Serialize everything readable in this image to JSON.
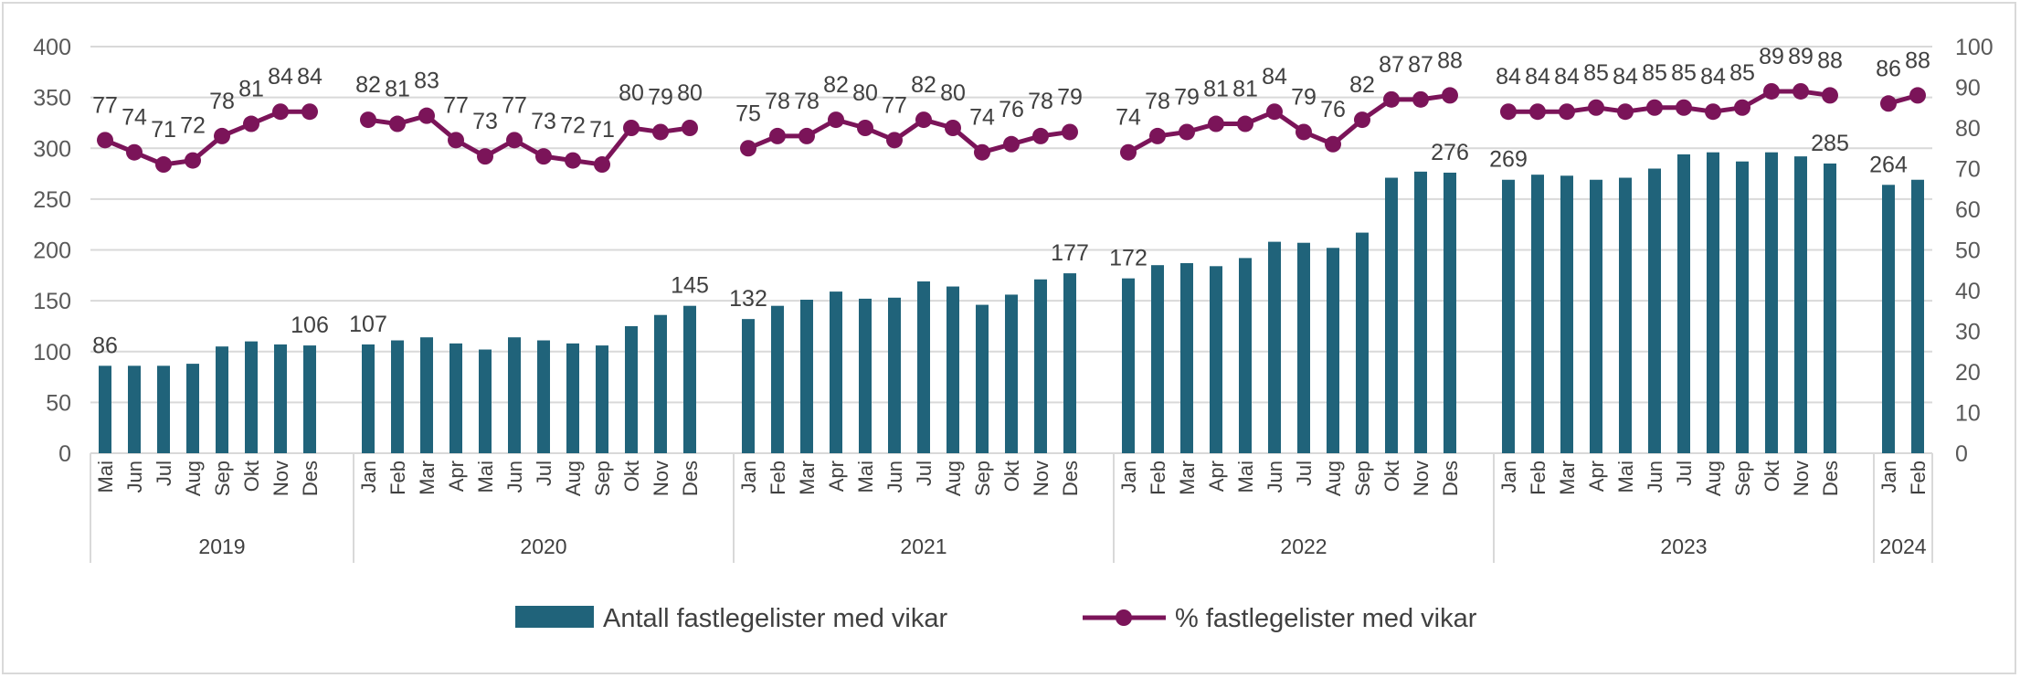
{
  "chart_data": {
    "type": "bar+line",
    "left_axis": {
      "ylim": [
        0,
        400
      ],
      "ticks": [
        "0",
        "50",
        "100",
        "150",
        "200",
        "250",
        "300",
        "350",
        "400"
      ]
    },
    "right_axis": {
      "ylim": [
        0,
        100
      ],
      "ticks": [
        "0",
        "10",
        "20",
        "30",
        "40",
        "50",
        "60",
        "70",
        "80",
        "90",
        "100"
      ]
    },
    "grid": true,
    "legend_position": "bottom",
    "colors": {
      "bars": "#20637A",
      "line": "#7B1459",
      "grid": "#d9d9d9"
    },
    "series": [
      {
        "name": "Antall fastlegelister med vikar",
        "type": "bar",
        "axis": "left"
      },
      {
        "name": "% fastlegelister med vikar",
        "type": "line",
        "axis": "right",
        "markers": "circle"
      }
    ],
    "groups": [
      {
        "year": "2019",
        "months": [
          "Mai",
          "Jun",
          "Jul",
          "Aug",
          "Sep",
          "Okt",
          "Nov",
          "Des"
        ],
        "bars": [
          86,
          86,
          86,
          88,
          105,
          110,
          107,
          106
        ],
        "pct": [
          77,
          74,
          71,
          72,
          78,
          81,
          84,
          84
        ],
        "bar_labeled": [
          true,
          false,
          false,
          false,
          false,
          false,
          false,
          true
        ]
      },
      {
        "year": "2020",
        "months": [
          "Jan",
          "Feb",
          "Mar",
          "Apr",
          "Mai",
          "Jun",
          "Jul",
          "Aug",
          "Sep",
          "Okt",
          "Nov",
          "Des"
        ],
        "bars": [
          107,
          111,
          114,
          108,
          102,
          114,
          111,
          108,
          106,
          125,
          136,
          145
        ],
        "pct": [
          82,
          81,
          83,
          77,
          73,
          77,
          73,
          72,
          71,
          80,
          79,
          80
        ],
        "bar_labeled": [
          true,
          false,
          false,
          false,
          false,
          false,
          false,
          false,
          false,
          false,
          false,
          true
        ]
      },
      {
        "year": "2021",
        "months": [
          "Jan",
          "Feb",
          "Mar",
          "Apr",
          "Mai",
          "Jun",
          "Jul",
          "Aug",
          "Sep",
          "Okt",
          "Nov",
          "Des"
        ],
        "bars": [
          132,
          145,
          151,
          159,
          152,
          153,
          169,
          164,
          146,
          156,
          171,
          177
        ],
        "pct": [
          75,
          78,
          78,
          82,
          80,
          77,
          82,
          80,
          74,
          76,
          78,
          79
        ],
        "bar_labeled": [
          true,
          false,
          false,
          false,
          false,
          false,
          false,
          false,
          false,
          false,
          false,
          true
        ]
      },
      {
        "year": "2022",
        "months": [
          "Jan",
          "Feb",
          "Mar",
          "Apr",
          "Mai",
          "Jun",
          "Jul",
          "Aug",
          "Sep",
          "Okt",
          "Nov",
          "Des"
        ],
        "bars": [
          172,
          185,
          187,
          184,
          192,
          208,
          207,
          202,
          217,
          271,
          277,
          276
        ],
        "pct": [
          74,
          78,
          79,
          81,
          81,
          84,
          79,
          76,
          82,
          87,
          87,
          88
        ],
        "bar_labeled": [
          true,
          false,
          false,
          false,
          false,
          false,
          false,
          false,
          false,
          false,
          false,
          true
        ]
      },
      {
        "year": "2023",
        "months": [
          "Jan",
          "Feb",
          "Mar",
          "Apr",
          "Mai",
          "Jun",
          "Jul",
          "Aug",
          "Sep",
          "Okt",
          "Nov",
          "Des"
        ],
        "bars": [
          269,
          274,
          273,
          269,
          271,
          280,
          294,
          296,
          287,
          296,
          292,
          285
        ],
        "pct": [
          84,
          84,
          84,
          85,
          84,
          85,
          85,
          84,
          85,
          89,
          89,
          88
        ],
        "bar_labeled": [
          true,
          false,
          false,
          false,
          false,
          false,
          false,
          false,
          false,
          false,
          false,
          true
        ]
      },
      {
        "year": "2024",
        "months": [
          "Jan",
          "Feb"
        ],
        "bars": [
          264,
          269
        ],
        "pct": [
          86,
          88
        ],
        "bar_labeled": [
          true,
          false
        ]
      }
    ]
  }
}
